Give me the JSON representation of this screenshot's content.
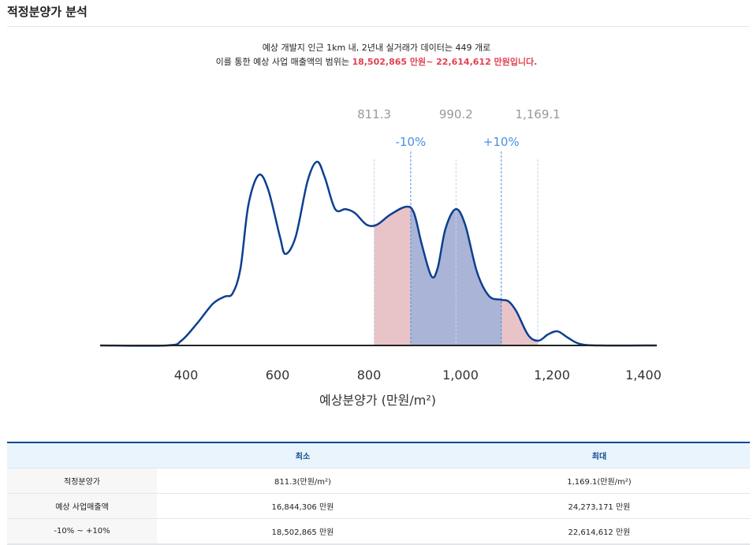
{
  "title": "적정분양가 분석",
  "desc": {
    "line1": "예상 개발지 인근 1km 내, 2년내 실거래가 데이터는 449 개로",
    "line2_prefix": "이를 통한 예상 사업 매출액의 범위는 ",
    "line2_range": "18,502,865 만원~ 22,614,612 만원입니다."
  },
  "chart_data": {
    "type": "area",
    "xlabel": "예상분양가 (만원/m²)",
    "xlim": [
      212,
      1429
    ],
    "xticks": [
      400,
      600,
      800,
      1000,
      1200,
      1400
    ],
    "xtick_labels": [
      "400",
      "600",
      "800",
      "1,000",
      "1,200",
      "1,400"
    ],
    "markers": [
      {
        "x": 811.3,
        "label": "811.3",
        "kind": "value"
      },
      {
        "x": 891.2,
        "label": "-10%",
        "kind": "pct"
      },
      {
        "x": 990.2,
        "label": "990.2",
        "kind": "value"
      },
      {
        "x": 1089.2,
        "label": "+10%",
        "kind": "pct"
      },
      {
        "x": 1169.1,
        "label": "1,169.1",
        "kind": "value"
      }
    ],
    "ranges": {
      "full": [
        811.3,
        1169.1
      ],
      "pct": [
        891.2,
        1089.2
      ]
    },
    "colors": {
      "line": "#0d3f8f",
      "full": "#e8c3c8",
      "pct": "#aab4d6",
      "value_label": "#999999",
      "pct_label": "#4a90e2"
    },
    "x": [
      212,
      358.6,
      389.7,
      424.1,
      458.6,
      484.5,
      501.7,
      519,
      536.2,
      558.6,
      579.3,
      605.2,
      617.2,
      639.7,
      665.5,
      686.2,
      703.4,
      725.9,
      748.3,
      769,
      794.8,
      817.2,
      846.6,
      881,
      898.3,
      915.5,
      936.2,
      950,
      967.2,
      989.7,
      1010.3,
      1036.2,
      1062.1,
      1087.9,
      1105.2,
      1122.4,
      1148.3,
      1170.7,
      1191.4,
      1212.1,
      1234.5,
      1260.3,
      1303.4,
      1429
    ],
    "density": [
      0,
      0,
      0.026,
      0.12,
      0.227,
      0.266,
      0.283,
      0.42,
      0.764,
      0.927,
      0.85,
      0.592,
      0.498,
      0.592,
      0.893,
      1,
      0.914,
      0.742,
      0.742,
      0.721,
      0.657,
      0.657,
      0.712,
      0.755,
      0.721,
      0.549,
      0.378,
      0.42,
      0.635,
      0.742,
      0.657,
      0.399,
      0.27,
      0.249,
      0.24,
      0.185,
      0.056,
      0.026,
      0.06,
      0.077,
      0.043,
      0.009,
      0,
      0
    ]
  },
  "table": {
    "headers": [
      "",
      "최소",
      "최대"
    ],
    "rows": [
      [
        "적정분양가",
        "811.3(만원/m²)",
        "1,169.1(만원/m²)"
      ],
      [
        "예상 사업매출액",
        "16,844,306 만원",
        "24,273,171 만원"
      ],
      [
        "-10% ~ +10%",
        "18,502,865 만원",
        "22,614,612 만원"
      ]
    ]
  }
}
